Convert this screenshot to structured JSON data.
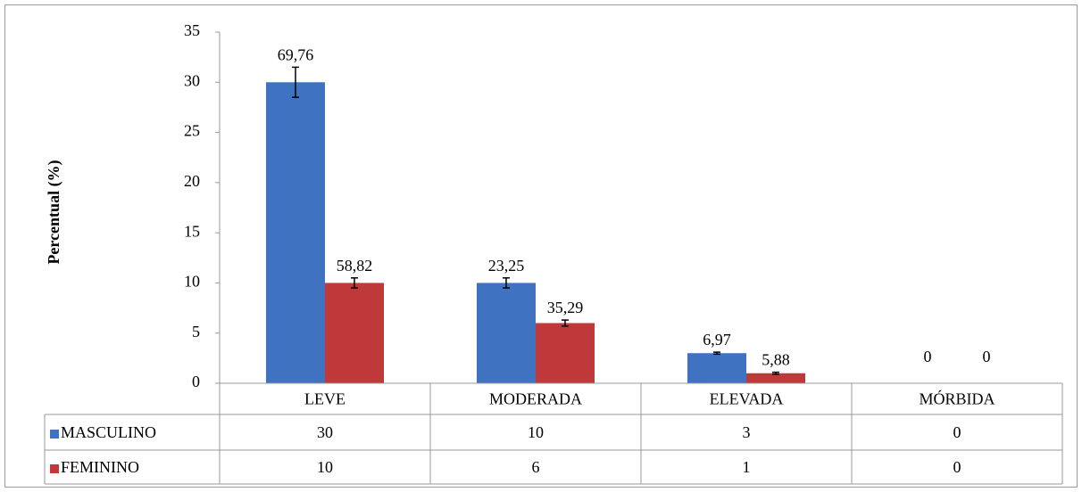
{
  "chart_data": {
    "type": "bar",
    "y_label": "Percentual (%)",
    "categories": [
      "LEVE",
      "MODERADA",
      "ELEVADA",
      "MÓRBIDA"
    ],
    "series": [
      {
        "name": "MASCULINO",
        "color": "#3f73c2",
        "values": [
          30,
          10,
          3,
          0
        ],
        "errors": [
          1.5,
          0.5,
          0.1,
          null
        ],
        "point_labels": [
          "69,76",
          "23,25",
          "6,97",
          "0"
        ]
      },
      {
        "name": "FEMININO",
        "color": "#c0393a",
        "values": [
          10,
          6,
          1,
          0
        ],
        "errors": [
          0.5,
          0.3,
          0.1,
          null
        ],
        "point_labels": [
          "58,82",
          "35,29",
          "5,88",
          "0"
        ]
      }
    ],
    "ylim": [
      0,
      35
    ],
    "yticks": [
      0,
      5,
      10,
      15,
      20,
      25,
      30,
      35
    ],
    "grid": false,
    "data_table": true
  }
}
